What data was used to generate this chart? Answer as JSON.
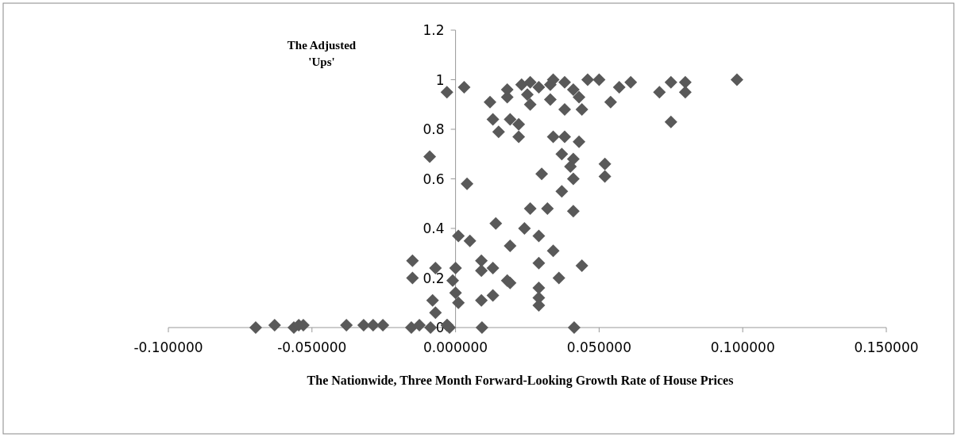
{
  "chart_data": {
    "type": "scatter",
    "xlabel": "The Nationwide, Three Month Forward-Looking Growth Rate of House Prices",
    "ylabel": "The Adjusted 'Ups'",
    "marker": "diamond",
    "grid": false,
    "xlim": [
      -0.1,
      0.15
    ],
    "xticks": [
      {
        "value": -0.1,
        "label": "-0.100000"
      },
      {
        "value": -0.05,
        "label": "-0.050000"
      },
      {
        "value": 0,
        "label": "0.000000"
      },
      {
        "value": 0.05,
        "label": "0.050000"
      },
      {
        "value": 0.1,
        "label": "0.100000"
      },
      {
        "value": 0.15,
        "label": "0.150000"
      }
    ],
    "ylim": [
      0,
      1.2
    ],
    "yticks": [
      0,
      0.2,
      0.4,
      0.6,
      0.8,
      1,
      1.2
    ],
    "series": [
      {
        "color": "#595959",
        "x": [
          -0.0696,
          -0.063,
          -0.0563,
          -0.0546,
          -0.053,
          -0.038,
          -0.032,
          -0.0287,
          -0.0253,
          -0.0154,
          -0.0126,
          -0.0087,
          -0.0029,
          -0.0021,
          0.0092,
          0.0413,
          0.001,
          0.005,
          -0.007,
          0.0,
          -0.001,
          0.0,
          0.001,
          -0.008,
          -0.007,
          -0.003,
          0.014,
          0.026,
          0.032,
          0.041,
          0.024,
          0.029,
          0.019,
          0.034,
          0.029,
          0.044,
          0.009,
          0.009,
          0.013,
          0.018,
          0.019,
          0.036,
          0.029,
          0.029,
          0.029,
          0.013,
          0.009,
          -0.015,
          -0.015,
          -0.003,
          0.003,
          0.012,
          0.013,
          0.015,
          0.022,
          0.019,
          0.022,
          0.018,
          0.018,
          0.023,
          0.026,
          0.025,
          0.026,
          0.029,
          0.033,
          0.034,
          0.038,
          0.033,
          0.038,
          0.041,
          0.043,
          0.044,
          0.046,
          0.05,
          0.054,
          0.057,
          0.061,
          0.071,
          0.075,
          0.08,
          0.08,
          0.075,
          0.098,
          0.034,
          0.038,
          0.043,
          -0.009,
          0.037,
          0.041,
          0.04,
          0.052,
          0.052,
          0.03,
          0.041,
          0.004,
          0.037
        ],
        "values": [
          0,
          0.01,
          0,
          0.01,
          0.01,
          0.01,
          0.01,
          0.01,
          0.01,
          0,
          0.01,
          0,
          0.01,
          0,
          0,
          0,
          0.37,
          0.35,
          0.24,
          0.24,
          0.19,
          0.14,
          0.1,
          0.11,
          0.06,
          0.01,
          0.42,
          0.48,
          0.48,
          0.47,
          0.4,
          0.37,
          0.33,
          0.31,
          0.26,
          0.25,
          0.27,
          0.23,
          0.24,
          0.19,
          0.18,
          0.2,
          0.16,
          0.12,
          0.09,
          0.13,
          0.11,
          0.27,
          0.2,
          0.95,
          0.97,
          0.91,
          0.84,
          0.79,
          0.77,
          0.84,
          0.82,
          0.93,
          0.96,
          0.98,
          0.99,
          0.94,
          0.9,
          0.97,
          0.98,
          1.0,
          0.99,
          0.92,
          0.88,
          0.96,
          0.93,
          0.88,
          1.0,
          1.0,
          0.91,
          0.97,
          0.99,
          0.95,
          0.99,
          0.99,
          0.95,
          0.83,
          1.0,
          0.77,
          0.77,
          0.75,
          0.69,
          0.7,
          0.68,
          0.65,
          0.66,
          0.61,
          0.62,
          0.6,
          0.58,
          0.55
        ]
      }
    ]
  }
}
